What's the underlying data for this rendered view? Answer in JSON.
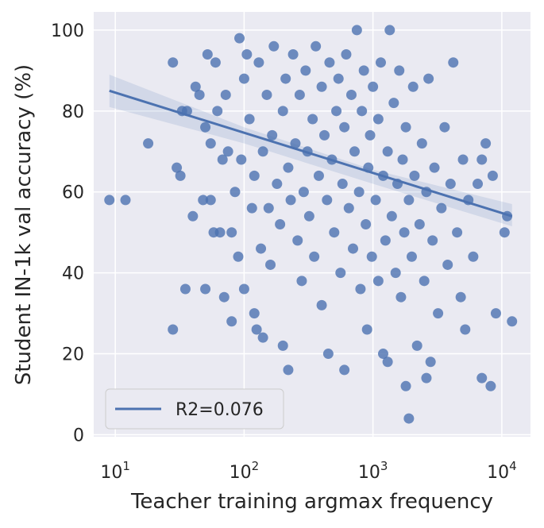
{
  "chart_data": {
    "type": "scatter",
    "xlabel": "Teacher training argmax frequency",
    "ylabel": "Student IN-1k val accuracy (%)",
    "xscale": "log",
    "xlim": [
      6.8,
      16700
    ],
    "ylim": [
      -0.5,
      104.5
    ],
    "xticks": [
      {
        "value": 10,
        "label": "10",
        "exponent": "1"
      },
      {
        "value": 100,
        "label": "10",
        "exponent": "2"
      },
      {
        "value": 1000,
        "label": "10",
        "exponent": "3"
      },
      {
        "value": 10000,
        "label": "10",
        "exponent": "4"
      }
    ],
    "yticks": [
      0,
      20,
      40,
      60,
      80,
      100
    ],
    "grid": true,
    "color": "#4c72b0",
    "x": [
      9,
      12,
      18,
      28,
      28,
      30,
      32,
      33,
      35,
      36,
      40,
      42,
      45,
      48,
      50,
      50,
      52,
      55,
      55,
      58,
      60,
      62,
      65,
      68,
      70,
      72,
      75,
      80,
      80,
      85,
      90,
      92,
      95,
      100,
      100,
      105,
      110,
      115,
      120,
      120,
      125,
      130,
      135,
      140,
      140,
      150,
      155,
      160,
      165,
      170,
      180,
      190,
      200,
      200,
      210,
      220,
      220,
      230,
      240,
      250,
      260,
      270,
      280,
      290,
      300,
      310,
      320,
      340,
      350,
      360,
      380,
      400,
      400,
      420,
      440,
      450,
      460,
      480,
      500,
      520,
      540,
      560,
      580,
      600,
      600,
      620,
      650,
      680,
      700,
      720,
      750,
      780,
      800,
      820,
      850,
      880,
      900,
      920,
      950,
      980,
      1000,
      1050,
      1100,
      1100,
      1150,
      1200,
      1200,
      1250,
      1300,
      1300,
      1350,
      1400,
      1450,
      1500,
      1550,
      1600,
      1650,
      1700,
      1750,
      1800,
      1800,
      1900,
      1900,
      2000,
      2050,
      2100,
      2200,
      2300,
      2400,
      2500,
      2600,
      2600,
      2700,
      2800,
      2900,
      3000,
      3200,
      3400,
      3600,
      3800,
      4000,
      4200,
      4500,
      4800,
      5000,
      5200,
      5500,
      6000,
      6500,
      7000,
      7000,
      7500,
      8200,
      8500,
      9000,
      10500,
      11000,
      12000
    ],
    "y": [
      58,
      58,
      72,
      92,
      26,
      66,
      64,
      80,
      36,
      80,
      54,
      86,
      84,
      58,
      36,
      76,
      94,
      58,
      72,
      50,
      92,
      80,
      50,
      68,
      34,
      84,
      70,
      28,
      50,
      60,
      44,
      98,
      68,
      36,
      88,
      94,
      78,
      56,
      30,
      64,
      26,
      92,
      46,
      24,
      70,
      84,
      56,
      42,
      74,
      96,
      62,
      52,
      22,
      80,
      88,
      16,
      66,
      58,
      94,
      72,
      48,
      84,
      38,
      60,
      90,
      70,
      54,
      78,
      44,
      96,
      64,
      32,
      86,
      74,
      58,
      20,
      92,
      68,
      50,
      80,
      88,
      40,
      62,
      16,
      76,
      94,
      56,
      84,
      46,
      70,
      100,
      60,
      36,
      80,
      90,
      52,
      26,
      66,
      74,
      44,
      86,
      58,
      38,
      78,
      92,
      20,
      64,
      48,
      18,
      70,
      100,
      54,
      82,
      40,
      62,
      90,
      34,
      68,
      50,
      12,
      76,
      4,
      58,
      44,
      86,
      64,
      22,
      52,
      72,
      38,
      14,
      60,
      88,
      18,
      48,
      66,
      30,
      56,
      76,
      42,
      62,
      92,
      50,
      34,
      68,
      26,
      58,
      44,
      62,
      14,
      68,
      72,
      12,
      64,
      30,
      50,
      54,
      28
    ],
    "regression": {
      "name": "R2=0.076",
      "color": "#4c72b0",
      "x": [
        9,
        12000
      ],
      "y": [
        85,
        54
      ]
    },
    "band": {
      "x": [
        9,
        100,
        1000,
        12000
      ],
      "lower": [
        81,
        72,
        62,
        51.5
      ],
      "upper": [
        89,
        76,
        65.5,
        57
      ]
    },
    "legend": "lower left"
  }
}
